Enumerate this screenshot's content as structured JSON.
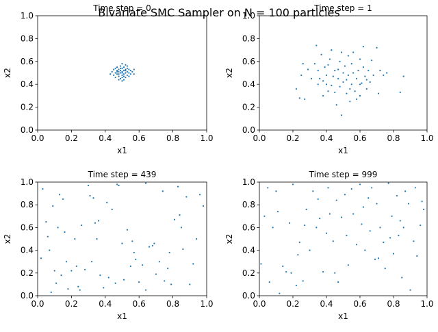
{
  "figure": {
    "suptitle": "Bivariate SMC Sampler on N = 100 particles"
  },
  "chart_data": [
    {
      "type": "scatter",
      "title": "Time step = 0",
      "xlabel": "x1",
      "ylabel": "x2",
      "xlim": [
        0,
        1
      ],
      "ylim": [
        0,
        1
      ],
      "xticks": [
        "0.0",
        "0.2",
        "0.4",
        "0.6",
        "0.8",
        "1.0"
      ],
      "yticks": [
        "0.0",
        "0.2",
        "0.4",
        "0.6",
        "0.8",
        "1.0"
      ],
      "color": "#1f77b4",
      "points": [
        [
          0.43,
          0.49
        ],
        [
          0.44,
          0.51
        ],
        [
          0.45,
          0.48
        ],
        [
          0.45,
          0.53
        ],
        [
          0.46,
          0.5
        ],
        [
          0.46,
          0.46
        ],
        [
          0.47,
          0.52
        ],
        [
          0.47,
          0.49
        ],
        [
          0.47,
          0.55
        ],
        [
          0.48,
          0.47
        ],
        [
          0.48,
          0.51
        ],
        [
          0.48,
          0.53
        ],
        [
          0.49,
          0.45
        ],
        [
          0.49,
          0.5
        ],
        [
          0.49,
          0.56
        ],
        [
          0.49,
          0.52
        ],
        [
          0.5,
          0.48
        ],
        [
          0.5,
          0.51
        ],
        [
          0.5,
          0.54
        ],
        [
          0.5,
          0.43
        ],
        [
          0.5,
          0.58
        ],
        [
          0.51,
          0.49
        ],
        [
          0.51,
          0.52
        ],
        [
          0.51,
          0.47
        ],
        [
          0.51,
          0.55
        ],
        [
          0.52,
          0.5
        ],
        [
          0.52,
          0.53
        ],
        [
          0.52,
          0.46
        ],
        [
          0.53,
          0.51
        ],
        [
          0.53,
          0.48
        ],
        [
          0.53,
          0.56
        ],
        [
          0.54,
          0.5
        ],
        [
          0.54,
          0.53
        ],
        [
          0.55,
          0.49
        ],
        [
          0.55,
          0.52
        ],
        [
          0.56,
          0.51
        ],
        [
          0.57,
          0.53
        ],
        [
          0.57,
          0.49
        ],
        [
          0.46,
          0.54
        ],
        [
          0.48,
          0.44
        ],
        [
          0.5,
          0.46
        ],
        [
          0.52,
          0.57
        ],
        [
          0.54,
          0.47
        ],
        [
          0.49,
          0.54
        ],
        [
          0.51,
          0.44
        ],
        [
          0.47,
          0.51
        ],
        [
          0.53,
          0.54
        ],
        [
          0.5,
          0.5
        ],
        [
          0.48,
          0.49
        ],
        [
          0.52,
          0.52
        ]
      ]
    },
    {
      "type": "scatter",
      "title": "Time step = 1",
      "xlabel": "x1",
      "ylabel": "x2",
      "xlim": [
        0,
        1
      ],
      "ylim": [
        0,
        1
      ],
      "xticks": [
        "0.0",
        "0.2",
        "0.4",
        "0.6",
        "0.8",
        "1.0"
      ],
      "yticks": [
        "0.0",
        "0.2",
        "0.4",
        "0.6",
        "0.8",
        "1.0"
      ],
      "color": "#1f77b4",
      "points": [
        [
          0.22,
          0.36
        ],
        [
          0.24,
          0.28
        ],
        [
          0.25,
          0.48
        ],
        [
          0.26,
          0.58
        ],
        [
          0.27,
          0.27
        ],
        [
          0.29,
          0.53
        ],
        [
          0.31,
          0.45
        ],
        [
          0.33,
          0.58
        ],
        [
          0.34,
          0.74
        ],
        [
          0.35,
          0.52
        ],
        [
          0.36,
          0.45
        ],
        [
          0.37,
          0.66
        ],
        [
          0.38,
          0.43
        ],
        [
          0.39,
          0.55
        ],
        [
          0.4,
          0.4
        ],
        [
          0.4,
          0.48
        ],
        [
          0.41,
          0.57
        ],
        [
          0.42,
          0.62
        ],
        [
          0.43,
          0.39
        ],
        [
          0.44,
          0.47
        ],
        [
          0.45,
          0.52
        ],
        [
          0.45,
          0.33
        ],
        [
          0.46,
          0.22
        ],
        [
          0.47,
          0.45
        ],
        [
          0.48,
          0.6
        ],
        [
          0.48,
          0.38
        ],
        [
          0.49,
          0.13
        ],
        [
          0.49,
          0.68
        ],
        [
          0.5,
          0.5
        ],
        [
          0.5,
          0.42
        ],
        [
          0.51,
          0.56
        ],
        [
          0.52,
          0.32
        ],
        [
          0.53,
          0.48
        ],
        [
          0.53,
          0.65
        ],
        [
          0.54,
          0.25
        ],
        [
          0.55,
          0.4
        ],
        [
          0.55,
          0.58
        ],
        [
          0.56,
          0.5
        ],
        [
          0.57,
          0.34
        ],
        [
          0.58,
          0.45
        ],
        [
          0.59,
          0.52
        ],
        [
          0.6,
          0.62
        ],
        [
          0.6,
          0.3
        ],
        [
          0.61,
          0.41
        ],
        [
          0.62,
          0.73
        ],
        [
          0.62,
          0.55
        ],
        [
          0.63,
          0.47
        ],
        [
          0.64,
          0.36
        ],
        [
          0.65,
          0.52
        ],
        [
          0.66,
          0.42
        ],
        [
          0.67,
          0.61
        ],
        [
          0.68,
          0.48
        ],
        [
          0.7,
          0.72
        ],
        [
          0.71,
          0.32
        ],
        [
          0.72,
          0.52
        ],
        [
          0.74,
          0.48
        ],
        [
          0.76,
          0.5
        ],
        [
          0.84,
          0.33
        ],
        [
          0.86,
          0.47
        ],
        [
          0.38,
          0.3
        ],
        [
          0.43,
          0.7
        ],
        [
          0.56,
          0.68
        ],
        [
          0.58,
          0.27
        ],
        [
          0.64,
          0.44
        ],
        [
          0.52,
          0.44
        ],
        [
          0.47,
          0.53
        ],
        [
          0.41,
          0.34
        ],
        [
          0.35,
          0.4
        ],
        [
          0.6,
          0.4
        ],
        [
          0.54,
          0.36
        ]
      ]
    },
    {
      "type": "scatter",
      "title": "Time step = 439",
      "xlabel": "x1",
      "ylabel": "x2",
      "xlim": [
        0,
        1
      ],
      "ylim": [
        0,
        1
      ],
      "xticks": [
        "0.0",
        "0.2",
        "0.4",
        "0.6",
        "0.8",
        "1.0"
      ],
      "yticks": [
        "0.0",
        "0.2",
        "0.4",
        "0.6",
        "0.8",
        "1.0"
      ],
      "color": "#1f77b4",
      "points": [
        [
          0.02,
          0.33
        ],
        [
          0.03,
          0.94
        ],
        [
          0.05,
          0.65
        ],
        [
          0.06,
          0.52
        ],
        [
          0.07,
          0.4
        ],
        [
          0.09,
          0.79
        ],
        [
          0.1,
          0.22
        ],
        [
          0.11,
          0.11
        ],
        [
          0.12,
          0.6
        ],
        [
          0.13,
          0.89
        ],
        [
          0.14,
          0.18
        ],
        [
          0.15,
          0.85
        ],
        [
          0.17,
          0.3
        ],
        [
          0.18,
          0.06
        ],
        [
          0.2,
          0.22
        ],
        [
          0.22,
          0.5
        ],
        [
          0.23,
          0.26
        ],
        [
          0.24,
          0.08
        ],
        [
          0.26,
          0.62
        ],
        [
          0.28,
          0.23
        ],
        [
          0.3,
          0.97
        ],
        [
          0.31,
          0.88
        ],
        [
          0.32,
          0.3
        ],
        [
          0.34,
          0.64
        ],
        [
          0.35,
          0.5
        ],
        [
          0.37,
          0.18
        ],
        [
          0.39,
          0.07
        ],
        [
          0.41,
          0.82
        ],
        [
          0.42,
          0.16
        ],
        [
          0.44,
          0.76
        ],
        [
          0.46,
          0.11
        ],
        [
          0.48,
          0.97
        ],
        [
          0.5,
          0.46
        ],
        [
          0.51,
          0.14
        ],
        [
          0.53,
          0.58
        ],
        [
          0.55,
          0.26
        ],
        [
          0.56,
          0.48
        ],
        [
          0.58,
          0.32
        ],
        [
          0.6,
          0.12
        ],
        [
          0.62,
          0.27
        ],
        [
          0.64,
          0.05
        ],
        [
          0.66,
          0.43
        ],
        [
          0.68,
          0.44
        ],
        [
          0.7,
          0.19
        ],
        [
          0.72,
          0.3
        ],
        [
          0.74,
          0.92
        ],
        [
          0.75,
          0.13
        ],
        [
          0.77,
          0.24
        ],
        [
          0.79,
          0.1
        ],
        [
          0.81,
          0.67
        ],
        [
          0.83,
          0.96
        ],
        [
          0.84,
          0.71
        ],
        [
          0.86,
          0.41
        ],
        [
          0.88,
          0.87
        ],
        [
          0.9,
          0.1
        ],
        [
          0.92,
          0.28
        ],
        [
          0.94,
          0.5
        ],
        [
          0.96,
          0.89
        ],
        [
          0.98,
          0.79
        ],
        [
          0.08,
          0.03
        ],
        [
          0.25,
          0.05
        ],
        [
          0.36,
          0.66
        ],
        [
          0.47,
          0.98
        ],
        [
          0.57,
          0.38
        ],
        [
          0.69,
          0.46
        ],
        [
          0.78,
          0.38
        ],
        [
          0.85,
          0.6
        ],
        [
          0.16,
          0.56
        ],
        [
          0.33,
          0.86
        ],
        [
          0.64,
          0.99
        ]
      ]
    },
    {
      "type": "scatter",
      "title": "Time step = 999",
      "xlabel": "x1",
      "ylabel": "x2",
      "xlim": [
        0,
        1
      ],
      "ylim": [
        0,
        1
      ],
      "xticks": [
        "0.0",
        "0.2",
        "0.4",
        "0.6",
        "0.8",
        "1.0"
      ],
      "yticks": [
        "0.0",
        "0.2",
        "0.4",
        "0.6",
        "0.8",
        "1.0"
      ],
      "color": "#1f77b4",
      "points": [
        [
          0.01,
          0.28
        ],
        [
          0.03,
          0.7
        ],
        [
          0.05,
          0.95
        ],
        [
          0.06,
          0.12
        ],
        [
          0.08,
          0.6
        ],
        [
          0.1,
          0.92
        ],
        [
          0.12,
          0.02
        ],
        [
          0.14,
          0.26
        ],
        [
          0.16,
          0.21
        ],
        [
          0.18,
          0.64
        ],
        [
          0.2,
          0.98
        ],
        [
          0.22,
          0.09
        ],
        [
          0.23,
          0.36
        ],
        [
          0.24,
          0.47
        ],
        [
          0.26,
          0.13
        ],
        [
          0.28,
          0.76
        ],
        [
          0.3,
          0.4
        ],
        [
          0.32,
          0.92
        ],
        [
          0.34,
          0.6
        ],
        [
          0.36,
          0.68
        ],
        [
          0.38,
          0.21
        ],
        [
          0.4,
          0.55
        ],
        [
          0.42,
          0.72
        ],
        [
          0.44,
          0.48
        ],
        [
          0.46,
          0.84
        ],
        [
          0.47,
          0.12
        ],
        [
          0.49,
          0.69
        ],
        [
          0.51,
          0.89
        ],
        [
          0.53,
          0.27
        ],
        [
          0.55,
          0.94
        ],
        [
          0.56,
          0.72
        ],
        [
          0.58,
          0.45
        ],
        [
          0.6,
          0.98
        ],
        [
          0.61,
          0.63
        ],
        [
          0.63,
          0.4
        ],
        [
          0.65,
          0.86
        ],
        [
          0.67,
          0.95
        ],
        [
          0.69,
          0.32
        ],
        [
          0.7,
          0.81
        ],
        [
          0.72,
          0.6
        ],
        [
          0.74,
          0.47
        ],
        [
          0.75,
          0.24
        ],
        [
          0.77,
          0.99
        ],
        [
          0.79,
          0.7
        ],
        [
          0.8,
          0.37
        ],
        [
          0.82,
          0.88
        ],
        [
          0.84,
          0.66
        ],
        [
          0.86,
          0.6
        ],
        [
          0.87,
          0.92
        ],
        [
          0.89,
          0.81
        ],
        [
          0.9,
          0.05
        ],
        [
          0.92,
          0.48
        ],
        [
          0.94,
          0.35
        ],
        [
          0.96,
          0.62
        ],
        [
          0.98,
          0.76
        ],
        [
          0.19,
          0.2
        ],
        [
          0.27,
          0.62
        ],
        [
          0.35,
          0.85
        ],
        [
          0.45,
          0.2
        ],
        [
          0.52,
          0.53
        ],
        [
          0.62,
          0.78
        ],
        [
          0.71,
          0.33
        ],
        [
          0.78,
          0.51
        ],
        [
          0.85,
          0.16
        ],
        [
          0.93,
          0.95
        ],
        [
          0.11,
          0.74
        ],
        [
          0.41,
          0.95
        ],
        [
          0.66,
          0.57
        ],
        [
          0.83,
          0.53
        ],
        [
          0.97,
          0.83
        ]
      ]
    }
  ]
}
